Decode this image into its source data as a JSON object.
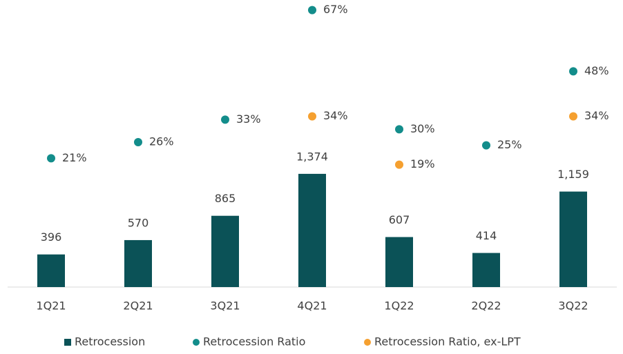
{
  "chart_data": {
    "type": "bar",
    "categories": [
      "1Q21",
      "2Q21",
      "3Q21",
      "4Q21",
      "1Q22",
      "2Q22",
      "3Q22"
    ],
    "series": [
      {
        "name": "Retrocession",
        "type": "bar",
        "color": "#0b5257",
        "values": [
          396,
          570,
          865,
          1374,
          607,
          414,
          1159
        ],
        "value_labels": [
          "396",
          "570",
          "865",
          "1,374",
          "607",
          "414",
          "1,159"
        ]
      },
      {
        "name": "Retrocession Ratio",
        "type": "scatter",
        "axis": "y2",
        "color": "#138d8b",
        "values": [
          21,
          26,
          33,
          67,
          30,
          25,
          48
        ],
        "value_labels": [
          "21%",
          "26%",
          "33%",
          "67%",
          "30%",
          "25%",
          "48%"
        ]
      },
      {
        "name": "Retrocession Ratio, ex-LPT",
        "type": "scatter",
        "axis": "y2",
        "color": "#f5a030",
        "values": [
          null,
          null,
          null,
          34,
          19,
          null,
          34
        ],
        "value_labels": [
          null,
          null,
          null,
          "34%",
          "19%",
          null,
          "34%"
        ]
      }
    ],
    "ylim": [
      0,
      3400
    ],
    "y2lim": [
      -19,
      68
    ],
    "legend": "bottom"
  }
}
